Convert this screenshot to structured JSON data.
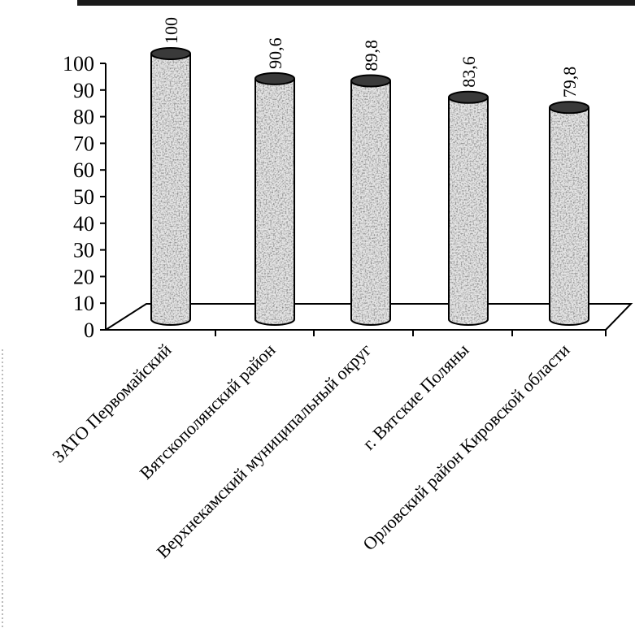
{
  "chart_data": {
    "type": "bar",
    "style": "3d-cylinder",
    "title": "",
    "xlabel": "",
    "ylabel": "",
    "ylim": [
      0,
      100
    ],
    "yticks": [
      "0",
      "10",
      "20",
      "30",
      "40",
      "50",
      "60",
      "70",
      "80",
      "90",
      "100"
    ],
    "categories": [
      "ЗАТО Первомайский",
      "Вятскополянский район",
      "Верхнекамский муниципальный округ",
      "г. Вятские Поляны",
      "Орловский район Кировской области"
    ],
    "values": [
      100,
      90.6,
      89.8,
      83.6,
      79.8
    ],
    "value_labels": [
      "100",
      "90,6",
      "89,8",
      "83,6",
      "79,8"
    ],
    "grid": false,
    "legend": "none",
    "colors": {
      "bar_fill": "#e6e6e6",
      "bar_speckle": "#555555",
      "bar_top": "#3a3a3a",
      "outline": "#000000"
    }
  }
}
